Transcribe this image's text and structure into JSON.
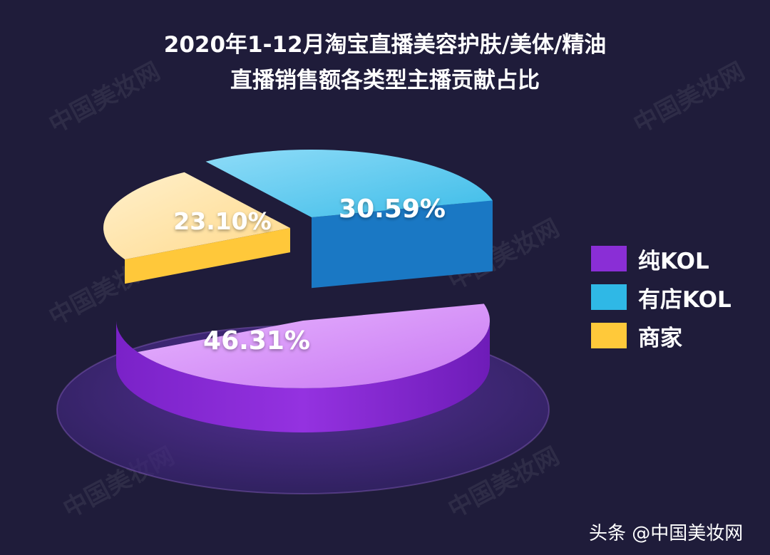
{
  "title": {
    "line1": "2020年1-12月淘宝直播美容护肤/美体/精油",
    "line2": "直播销售额各类型主播贡献占比"
  },
  "credit": "头条 @中国美妆网",
  "watermark": "中国美妆网",
  "colors": {
    "background": "#1f1c3a",
    "chunKOL": "#8a2ed6",
    "youdianKOL": "#2fb8e6",
    "shangjia": "#ffc93a"
  },
  "chart_data": {
    "type": "pie",
    "title": "2020年1-12月淘宝直播美容护肤/美体/精油 直播销售额各类型主播贡献占比",
    "categories": [
      "纯KOL",
      "有店KOL",
      "商家"
    ],
    "values": [
      46.31,
      30.59,
      23.1
    ],
    "labels": [
      "46.31%",
      "30.59%",
      "23.10%"
    ],
    "legend": "right",
    "legend_entries": [
      "纯KOL",
      "有店KOL",
      "商家"
    ]
  }
}
